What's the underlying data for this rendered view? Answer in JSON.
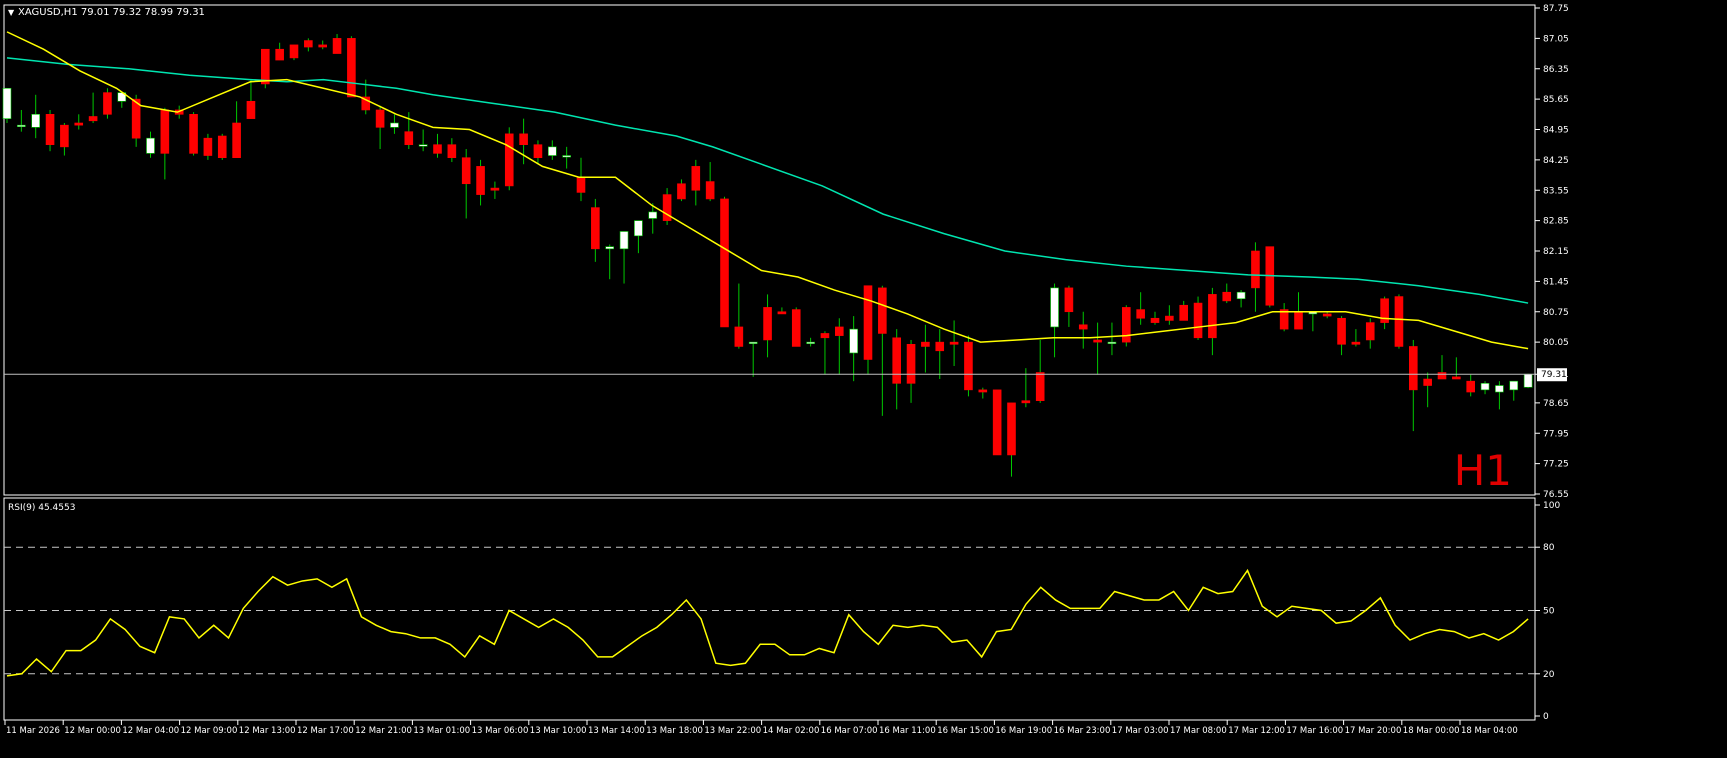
{
  "window": {
    "header": "XAGUSD,H1  79.01 79.32 78.99 79.31",
    "timeframe_label": "H1",
    "current_price_label": "79.31",
    "colors": {
      "bull_fill": "#ffffff",
      "bear_fill": "#ff0000",
      "wick": "#00c800",
      "ma_fast": "#ffff00",
      "ma_slow": "#00e5b0",
      "rsi_line": "#ffff00",
      "grid": "#ffffff"
    }
  },
  "chart_data": [
    {
      "type": "candlestick",
      "symbol": "XAGUSD",
      "timeframe": "H1",
      "title": "XAGUSD,H1",
      "ohlc_header": {
        "open": 79.01,
        "high": 79.32,
        "low": 78.99,
        "close": 79.31
      },
      "y_axis": {
        "ylim": [
          76.55,
          87.75
        ],
        "ticks": [
          "87.75",
          "87.05",
          "86.35",
          "85.65",
          "84.95",
          "84.25",
          "83.55",
          "82.85",
          "82.15",
          "81.45",
          "80.75",
          "80.05",
          "79.31",
          "78.65",
          "77.95",
          "77.25",
          "76.55"
        ]
      },
      "x_ticks": [
        "11 Mar 2026",
        "12 Mar 00:00",
        "12 Mar 04:00",
        "12 Mar 09:00",
        "12 Mar 13:00",
        "12 Mar 17:00",
        "12 Mar 21:00",
        "13 Mar 01:00",
        "13 Mar 06:00",
        "13 Mar 10:00",
        "13 Mar 14:00",
        "13 Mar 18:00",
        "13 Mar 22:00",
        "14 Mar 02:00",
        "16 Mar 07:00",
        "16 Mar 11:00",
        "16 Mar 15:00",
        "16 Mar 19:00",
        "16 Mar 23:00",
        "17 Mar 03:00",
        "17 Mar 08:00",
        "17 Mar 12:00",
        "17 Mar 16:00",
        "17 Mar 20:00",
        "18 Mar 00:00",
        "18 Mar 04:00"
      ],
      "candles": [
        [
          85.2,
          85.8,
          85.1,
          85.9
        ],
        [
          85.05,
          85.4,
          84.9,
          85.05
        ],
        [
          85.0,
          85.75,
          84.75,
          85.3
        ],
        [
          85.3,
          85.4,
          84.45,
          84.6
        ],
        [
          85.05,
          85.1,
          84.35,
          84.55
        ],
        [
          85.1,
          85.3,
          84.95,
          85.05
        ],
        [
          85.25,
          85.8,
          85.1,
          85.15
        ],
        [
          85.8,
          85.9,
          85.2,
          85.3
        ],
        [
          85.6,
          85.8,
          85.45,
          85.8
        ],
        [
          85.65,
          85.75,
          84.55,
          84.75
        ],
        [
          84.4,
          84.9,
          84.3,
          84.75
        ],
        [
          85.4,
          85.45,
          83.8,
          84.4
        ],
        [
          85.4,
          85.5,
          85.2,
          85.3
        ],
        [
          85.3,
          85.35,
          84.35,
          84.4
        ],
        [
          84.75,
          84.85,
          84.25,
          84.35
        ],
        [
          84.8,
          84.85,
          84.25,
          84.3
        ],
        [
          85.1,
          85.6,
          84.3,
          84.3
        ],
        [
          85.6,
          86.1,
          85.2,
          85.2
        ],
        [
          86.8,
          86.8,
          85.9,
          86.0
        ],
        [
          86.8,
          86.95,
          86.55,
          86.55
        ],
        [
          86.9,
          86.9,
          86.55,
          86.6
        ],
        [
          87.0,
          87.05,
          86.75,
          86.85
        ],
        [
          86.9,
          87.0,
          86.8,
          86.85
        ],
        [
          87.05,
          87.15,
          86.7,
          86.7
        ],
        [
          87.05,
          87.1,
          85.7,
          85.7
        ],
        [
          85.7,
          86.1,
          85.3,
          85.4
        ],
        [
          85.4,
          85.5,
          84.5,
          85.0
        ],
        [
          85.0,
          85.3,
          84.85,
          85.1
        ],
        [
          84.9,
          85.35,
          84.5,
          84.6
        ],
        [
          84.6,
          84.95,
          84.45,
          84.6
        ],
        [
          84.6,
          84.85,
          84.3,
          84.4
        ],
        [
          84.6,
          84.75,
          84.2,
          84.3
        ],
        [
          84.3,
          84.5,
          82.9,
          83.7
        ],
        [
          84.1,
          84.25,
          83.2,
          83.45
        ],
        [
          83.6,
          83.75,
          83.35,
          83.55
        ],
        [
          84.85,
          85.0,
          83.55,
          83.65
        ],
        [
          84.85,
          85.2,
          84.15,
          84.6
        ],
        [
          84.6,
          84.7,
          84.15,
          84.3
        ],
        [
          84.35,
          84.7,
          84.25,
          84.55
        ],
        [
          84.35,
          84.55,
          84.05,
          84.35
        ],
        [
          83.85,
          84.3,
          83.3,
          83.5
        ],
        [
          83.15,
          83.35,
          81.9,
          82.2
        ],
        [
          82.2,
          82.3,
          81.5,
          82.25
        ],
        [
          82.2,
          82.5,
          81.4,
          82.6
        ],
        [
          82.5,
          82.75,
          82.1,
          82.85
        ],
        [
          82.9,
          83.25,
          82.55,
          83.05
        ],
        [
          83.45,
          83.6,
          82.75,
          82.85
        ],
        [
          83.7,
          83.8,
          83.3,
          83.35
        ],
        [
          84.1,
          84.25,
          83.2,
          83.55
        ],
        [
          83.75,
          84.2,
          83.3,
          83.35
        ],
        [
          83.35,
          83.4,
          80.4,
          80.4
        ],
        [
          80.4,
          81.4,
          79.9,
          79.95
        ],
        [
          80.05,
          80.05,
          79.25,
          80.05
        ],
        [
          80.85,
          81.15,
          79.7,
          80.1
        ],
        [
          80.75,
          80.85,
          80.7,
          80.7
        ],
        [
          80.8,
          80.85,
          79.95,
          79.95
        ],
        [
          80.05,
          80.15,
          79.95,
          80.05
        ],
        [
          80.25,
          80.3,
          79.3,
          80.15
        ],
        [
          80.4,
          80.6,
          79.3,
          80.2
        ],
        [
          79.8,
          80.65,
          79.15,
          80.35
        ],
        [
          81.35,
          81.35,
          79.3,
          79.65
        ],
        [
          81.3,
          81.35,
          78.35,
          80.25
        ],
        [
          80.15,
          80.35,
          78.5,
          79.1
        ],
        [
          80.0,
          80.1,
          78.65,
          79.1
        ],
        [
          80.05,
          80.45,
          79.35,
          79.95
        ],
        [
          80.05,
          80.35,
          79.2,
          79.85
        ],
        [
          80.05,
          80.55,
          79.5,
          80.0
        ],
        [
          80.05,
          80.2,
          78.8,
          78.95
        ],
        [
          78.95,
          79.0,
          78.75,
          78.9
        ],
        [
          78.95,
          78.95,
          77.45,
          77.45
        ],
        [
          78.65,
          78.65,
          76.95,
          77.45
        ],
        [
          78.7,
          79.45,
          78.55,
          78.65
        ],
        [
          79.35,
          80.1,
          78.65,
          78.7
        ],
        [
          80.4,
          81.4,
          79.7,
          81.3
        ],
        [
          81.3,
          81.35,
          80.4,
          80.75
        ],
        [
          80.45,
          80.75,
          79.9,
          80.35
        ],
        [
          80.1,
          80.5,
          79.3,
          80.05
        ],
        [
          80.05,
          80.5,
          79.75,
          80.05
        ],
        [
          80.85,
          80.9,
          79.95,
          80.05
        ],
        [
          80.8,
          81.2,
          80.45,
          80.6
        ],
        [
          80.6,
          80.75,
          80.45,
          80.5
        ],
        [
          80.65,
          80.9,
          80.45,
          80.55
        ],
        [
          80.9,
          81.0,
          80.55,
          80.55
        ],
        [
          80.95,
          81.1,
          80.1,
          80.15
        ],
        [
          81.15,
          81.3,
          79.75,
          80.15
        ],
        [
          81.2,
          81.4,
          80.95,
          81.0
        ],
        [
          81.05,
          81.25,
          80.85,
          81.2
        ],
        [
          82.15,
          82.35,
          80.75,
          81.3
        ],
        [
          82.25,
          82.25,
          80.85,
          80.9
        ],
        [
          80.8,
          80.95,
          80.3,
          80.35
        ],
        [
          80.75,
          81.2,
          80.35,
          80.35
        ],
        [
          80.7,
          80.75,
          80.3,
          80.75
        ],
        [
          80.7,
          80.75,
          80.6,
          80.65
        ],
        [
          80.6,
          80.65,
          79.75,
          80.0
        ],
        [
          80.05,
          80.35,
          79.95,
          80.0
        ],
        [
          80.5,
          80.6,
          79.9,
          80.1
        ],
        [
          81.05,
          81.1,
          80.35,
          80.5
        ],
        [
          81.1,
          81.15,
          79.9,
          79.95
        ],
        [
          79.95,
          80.1,
          78.0,
          78.95
        ],
        [
          79.2,
          79.35,
          78.55,
          79.05
        ],
        [
          79.35,
          79.75,
          79.2,
          79.2
        ],
        [
          79.25,
          79.7,
          79.2,
          79.2
        ],
        [
          79.15,
          79.3,
          78.8,
          78.9
        ],
        [
          78.95,
          79.15,
          78.85,
          79.1
        ],
        [
          78.9,
          79.15,
          78.5,
          79.05
        ],
        [
          78.95,
          79.15,
          78.7,
          79.15
        ],
        [
          79.01,
          79.32,
          78.99,
          79.31
        ]
      ],
      "ma_fast_points": [
        [
          0,
          87.2
        ],
        [
          6,
          86.8
        ],
        [
          12,
          86.3
        ],
        [
          18,
          85.9
        ],
        [
          22,
          85.5
        ],
        [
          28,
          85.35
        ],
        [
          34,
          85.7
        ],
        [
          40,
          86.05
        ],
        [
          46,
          86.1
        ],
        [
          52,
          85.9
        ],
        [
          58,
          85.7
        ],
        [
          64,
          85.3
        ],
        [
          70,
          85.0
        ],
        [
          76,
          84.95
        ],
        [
          82,
          84.6
        ],
        [
          88,
          84.1
        ],
        [
          94,
          83.85
        ],
        [
          100,
          83.85
        ],
        [
          106,
          83.2
        ],
        [
          112,
          82.7
        ],
        [
          118,
          82.2
        ],
        [
          124,
          81.7
        ],
        [
          130,
          81.55
        ],
        [
          136,
          81.25
        ],
        [
          142,
          81.0
        ],
        [
          148,
          80.7
        ],
        [
          154,
          80.35
        ],
        [
          160,
          80.05
        ],
        [
          166,
          80.1
        ],
        [
          172,
          80.15
        ],
        [
          178,
          80.15
        ],
        [
          184,
          80.2
        ],
        [
          190,
          80.3
        ],
        [
          196,
          80.4
        ],
        [
          202,
          80.5
        ],
        [
          208,
          80.75
        ],
        [
          214,
          80.75
        ],
        [
          220,
          80.75
        ],
        [
          226,
          80.6
        ],
        [
          232,
          80.55
        ],
        [
          238,
          80.3
        ],
        [
          244,
          80.05
        ],
        [
          250,
          79.9
        ]
      ],
      "ma_slow_points": [
        [
          0,
          86.6
        ],
        [
          10,
          86.45
        ],
        [
          20,
          86.35
        ],
        [
          30,
          86.2
        ],
        [
          40,
          86.1
        ],
        [
          46,
          86.05
        ],
        [
          52,
          86.1
        ],
        [
          58,
          86.0
        ],
        [
          64,
          85.9
        ],
        [
          70,
          85.75
        ],
        [
          80,
          85.55
        ],
        [
          90,
          85.35
        ],
        [
          100,
          85.05
        ],
        [
          110,
          84.8
        ],
        [
          116,
          84.55
        ],
        [
          124,
          84.15
        ],
        [
          134,
          83.65
        ],
        [
          144,
          83.0
        ],
        [
          154,
          82.55
        ],
        [
          164,
          82.15
        ],
        [
          174,
          81.95
        ],
        [
          184,
          81.8
        ],
        [
          194,
          81.7
        ],
        [
          204,
          81.6
        ],
        [
          214,
          81.55
        ],
        [
          222,
          81.5
        ],
        [
          232,
          81.35
        ],
        [
          242,
          81.15
        ],
        [
          250,
          80.95
        ]
      ],
      "ma_fast_index_max": 250
    },
    {
      "type": "line",
      "title": "RSI(9) 45.4553",
      "indicator": "RSI",
      "period": 9,
      "last_value": 45.4553,
      "ylim": [
        0,
        100
      ],
      "y_ticks": [
        "100",
        "80",
        "50",
        "20",
        "0"
      ],
      "levels": [
        80,
        50,
        20
      ],
      "values": [
        19,
        20,
        27,
        21,
        31,
        31,
        36,
        46,
        41,
        33,
        30,
        47,
        46,
        37,
        43,
        37,
        51,
        59,
        66,
        62,
        64,
        65,
        61,
        65,
        47,
        43,
        40,
        39,
        37,
        37,
        34,
        28,
        38,
        34,
        50,
        46,
        42,
        46,
        42,
        36,
        28,
        28,
        33,
        38,
        42,
        48,
        55,
        46,
        25,
        24,
        25,
        34,
        34,
        29,
        29,
        32,
        30,
        48,
        40,
        34,
        43,
        42,
        43,
        42,
        35,
        36,
        28,
        40,
        41,
        53,
        61,
        55,
        51,
        51,
        51,
        59,
        57,
        55,
        55,
        59,
        50,
        61,
        58,
        59,
        69,
        52,
        47,
        52,
        51,
        50,
        44,
        45,
        50,
        56,
        43,
        36,
        39,
        41,
        40,
        37,
        39,
        36,
        40,
        46
      ]
    }
  ]
}
